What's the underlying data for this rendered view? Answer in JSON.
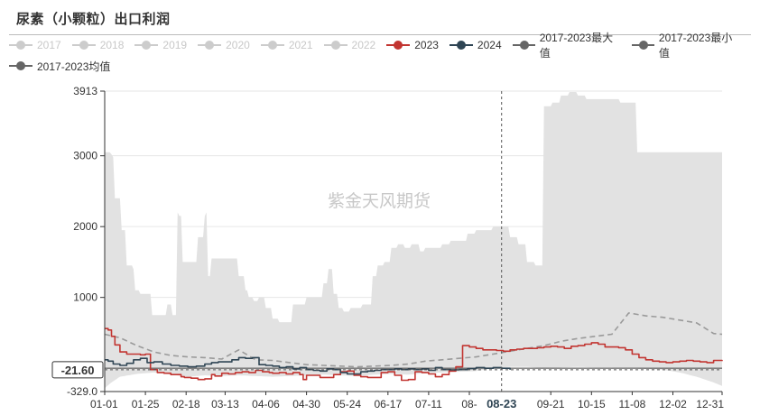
{
  "title": "尿素（小颗粒）出口利润",
  "watermark": "紫金天风期货",
  "legend": [
    {
      "label": "2017",
      "color": "#cccccc",
      "active": false
    },
    {
      "label": "2018",
      "color": "#cccccc",
      "active": false
    },
    {
      "label": "2019",
      "color": "#cccccc",
      "active": false
    },
    {
      "label": "2020",
      "color": "#cccccc",
      "active": false
    },
    {
      "label": "2021",
      "color": "#cccccc",
      "active": false
    },
    {
      "label": "2022",
      "color": "#cccccc",
      "active": false
    },
    {
      "label": "2023",
      "color": "#c23531",
      "active": true
    },
    {
      "label": "2024",
      "color": "#2f4554",
      "active": true
    },
    {
      "label": "2017-2023最大值",
      "color": "#666666",
      "active": true
    },
    {
      "label": "2017-2023最小值",
      "color": "#666666",
      "active": true
    },
    {
      "label": "2017-2023均值",
      "color": "#666666",
      "active": true
    }
  ],
  "chart_data": {
    "type": "line",
    "x_ticks": [
      "01-01",
      "01-25",
      "02-18",
      "03-13",
      "04-06",
      "04-30",
      "05-24",
      "06-17",
      "07-11",
      "08-",
      "08-23",
      "09-21",
      "10-15",
      "11-08",
      "12-02",
      "12-31"
    ],
    "x_pointer_label": "08-23",
    "y_pointer_label": "-21.60",
    "y_ticks": [
      "3913",
      "3000",
      "2000",
      "1000",
      "-329.0"
    ],
    "ylim": [
      -329,
      3913
    ],
    "grid": true,
    "colors": {
      "range_fill": "#e2e2e2",
      "mean": "#9a9a9a",
      "s2023": "#c23531",
      "s2024": "#2f4554",
      "pointer": "#333333"
    },
    "series": [
      {
        "name": "2017-2023最大值",
        "x": [
          1,
          3,
          5,
          6,
          7,
          10,
          11,
          12,
          14,
          17,
          18,
          19,
          22,
          24,
          25,
          28,
          29,
          30,
          33,
          35,
          38,
          40,
          41,
          42,
          44,
          45,
          47,
          49,
          52,
          54,
          56,
          58,
          59,
          60,
          61,
          62,
          64,
          66,
          68,
          70,
          72,
          74,
          77,
          80,
          82,
          84,
          86,
          89,
          92,
          96,
          100,
          104,
          108,
          112,
          116,
          120,
          124,
          128,
          130,
          133,
          136,
          139,
          142,
          146,
          150,
          153,
          156,
          159,
          162,
          166,
          170,
          174,
          178,
          182,
          184,
          187,
          190,
          195,
          200,
          205,
          210,
          215,
          220,
          225,
          230,
          235,
          240,
          245,
          250,
          255,
          260,
          265,
          270,
          275,
          280,
          285,
          290,
          295,
          300,
          305,
          310,
          315,
          320,
          325,
          330,
          335,
          340,
          345,
          350,
          355,
          360,
          365
        ],
        "y": [
          3050,
          3050,
          3020,
          2980,
          2400,
          2400,
          1950,
          1950,
          1450,
          1450,
          1400,
          1100,
          1050,
          1050,
          1050,
          1050,
          750,
          750,
          750,
          750,
          900,
          900,
          750,
          750,
          2200,
          2150,
          1500,
          1500,
          1500,
          1500,
          1850,
          1850,
          1850,
          2150,
          2200,
          1300,
          1550,
          1550,
          1550,
          1550,
          1550,
          1550,
          1550,
          1300,
          1300,
          1100,
          1000,
          950,
          1000,
          850,
          700,
          650,
          650,
          900,
          900,
          1000,
          1000,
          1000,
          1200,
          1400,
          1050,
          850,
          800,
          850,
          850,
          900,
          900,
          1300,
          1450,
          1500,
          1700,
          1750,
          1700,
          1750,
          1750,
          1650,
          1700,
          1700,
          1750,
          1800,
          1800,
          1900,
          1950,
          1950,
          2000,
          2000,
          1850,
          1750,
          1500,
          1450,
          3700,
          3750,
          3850,
          3900,
          3850,
          3800,
          3800,
          3800,
          3800,
          3750,
          3750,
          3050,
          3050,
          3050,
          3050,
          3050,
          3050,
          3050,
          3050,
          3050,
          3050,
          3050
        ],
        "_note": "upper envelope; visually flattened after 300"
      },
      {
        "name": "2017-2023最小值",
        "x": [
          1,
          5,
          10,
          20,
          30,
          40,
          50,
          60,
          70,
          80,
          90,
          100,
          110,
          120,
          130,
          140,
          150,
          160,
          170,
          180,
          190,
          200,
          210,
          220,
          230,
          240,
          250,
          260,
          270,
          280,
          290,
          300,
          310,
          320,
          330,
          340,
          350,
          360,
          365
        ],
        "y": [
          -280,
          -200,
          -120,
          -80,
          -60,
          -90,
          -120,
          -100,
          -110,
          -100,
          -110,
          -120,
          -110,
          -100,
          -90,
          -100,
          -110,
          -90,
          -80,
          -90,
          -70,
          -60,
          -50,
          -40,
          0,
          20,
          20,
          0,
          10,
          20,
          10,
          10,
          0,
          -10,
          -20,
          -60,
          -120,
          -200,
          -250
        ]
      },
      {
        "name": "2017-2023均值",
        "x": [
          1,
          10,
          20,
          30,
          40,
          50,
          60,
          70,
          80,
          90,
          100,
          110,
          120,
          130,
          140,
          150,
          160,
          170,
          180,
          190,
          200,
          210,
          220,
          230,
          240,
          250,
          260,
          270,
          280,
          290,
          300,
          310,
          320,
          330,
          340,
          350,
          360,
          365
        ],
        "y": [
          480,
          430,
          320,
          230,
          180,
          160,
          150,
          130,
          260,
          120,
          110,
          80,
          50,
          40,
          30,
          20,
          30,
          40,
          60,
          100,
          120,
          140,
          160,
          200,
          240,
          280,
          320,
          380,
          420,
          450,
          480,
          780,
          740,
          720,
          680,
          640,
          490,
          480
        ]
      },
      {
        "name": "2023",
        "x": [
          1,
          3,
          5,
          7,
          10,
          14,
          18,
          22,
          25,
          28,
          32,
          36,
          40,
          44,
          46,
          48,
          52,
          56,
          60,
          64,
          66,
          70,
          74,
          78,
          82,
          86,
          90,
          94,
          98,
          100,
          104,
          108,
          112,
          116,
          118,
          120,
          124,
          128,
          132,
          136,
          140,
          144,
          148,
          152,
          156,
          160,
          164,
          168,
          172,
          176,
          180,
          184,
          188,
          192,
          196,
          200,
          204,
          208,
          212,
          216,
          220,
          224,
          228,
          232,
          236,
          240,
          244,
          248,
          252,
          256,
          260,
          264,
          268,
          272,
          276,
          280,
          284,
          288,
          292,
          296,
          300,
          304,
          308,
          312,
          316,
          320,
          324,
          328,
          332,
          336,
          340,
          344,
          348,
          352,
          356,
          360,
          365
        ],
        "y": [
          560,
          540,
          450,
          330,
          230,
          200,
          200,
          190,
          200,
          -20,
          -60,
          -70,
          -90,
          -90,
          -120,
          -130,
          -140,
          -160,
          -150,
          -90,
          -110,
          -70,
          -80,
          -60,
          -50,
          -60,
          -30,
          -50,
          -60,
          -70,
          -60,
          -80,
          -60,
          -90,
          -160,
          -100,
          -100,
          -130,
          -130,
          -90,
          -50,
          -40,
          -100,
          -120,
          -130,
          -130,
          -60,
          -50,
          -100,
          -170,
          -160,
          -50,
          -60,
          -80,
          -120,
          -90,
          -40,
          20,
          320,
          300,
          280,
          260,
          260,
          250,
          240,
          260,
          270,
          280,
          280,
          290,
          300,
          310,
          300,
          280,
          310,
          320,
          340,
          360,
          340,
          300,
          300,
          290,
          260,
          200,
          150,
          120,
          100,
          90,
          80,
          90,
          100,
          110,
          100,
          90,
          80,
          110,
          100
        ]
      },
      {
        "name": "2024",
        "x": [
          1,
          3,
          6,
          10,
          14,
          18,
          22,
          26,
          30,
          35,
          40,
          45,
          50,
          55,
          60,
          64,
          68,
          72,
          76,
          80,
          84,
          88,
          92,
          96,
          100,
          104,
          108,
          112,
          116,
          120,
          124,
          128,
          132,
          136,
          140,
          144,
          148,
          152,
          156,
          160,
          164,
          168,
          172,
          176,
          180,
          184,
          188,
          192,
          196,
          200,
          205,
          210,
          215,
          220,
          225,
          230,
          235,
          240
        ],
        "y": [
          120,
          100,
          60,
          40,
          70,
          120,
          140,
          80,
          90,
          60,
          40,
          30,
          20,
          30,
          60,
          80,
          90,
          90,
          120,
          150,
          140,
          150,
          50,
          40,
          30,
          10,
          20,
          -10,
          10,
          -20,
          -30,
          -40,
          -10,
          -20,
          -60,
          -80,
          -80,
          -50,
          -40,
          -30,
          -20,
          -20,
          -10,
          -20,
          -10,
          -20,
          -10,
          -30,
          10,
          -20,
          -21.6,
          -20,
          -5,
          10,
          0,
          10,
          0,
          -21.6
        ]
      }
    ]
  }
}
